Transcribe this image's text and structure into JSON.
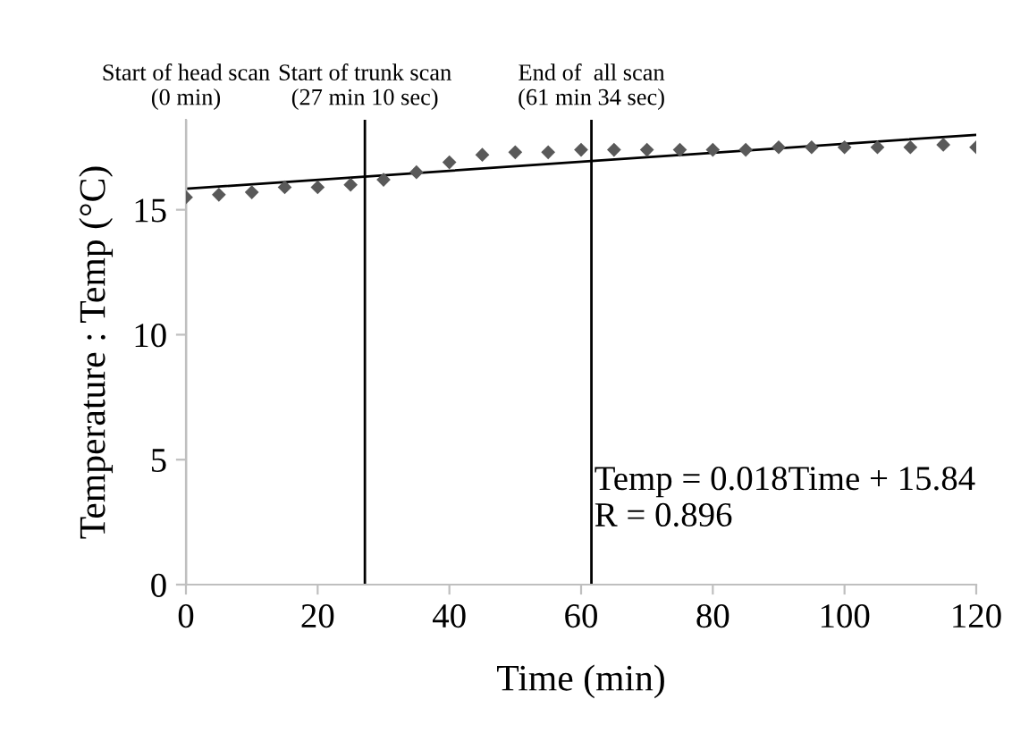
{
  "chart_data": {
    "type": "scatter",
    "xlabel": "Time (min)",
    "ylabel": "Temperature : Temp (°C)",
    "xlim": [
      0,
      120
    ],
    "xticks": [
      0,
      20,
      40,
      60,
      80,
      100,
      120
    ],
    "ylim": [
      0,
      18.6
    ],
    "yticks": [
      0,
      5,
      10,
      15
    ],
    "grid": false,
    "legend": false,
    "series": [
      {
        "marker": "diamond",
        "color": "#595959",
        "x": [
          0,
          5,
          10,
          15,
          20,
          25,
          30,
          35,
          40,
          45,
          50,
          55,
          60,
          65,
          70,
          75,
          80,
          85,
          90,
          95,
          100,
          105,
          110,
          115,
          120
        ],
        "values": [
          15.5,
          15.6,
          15.7,
          15.9,
          15.9,
          16.0,
          16.2,
          16.5,
          16.9,
          17.2,
          17.3,
          17.3,
          17.4,
          17.4,
          17.4,
          17.4,
          17.4,
          17.4,
          17.5,
          17.5,
          17.5,
          17.5,
          17.5,
          17.6,
          17.5
        ]
      },
      {
        "type": "line",
        "marker": "none",
        "color": "#000000",
        "x": [
          0,
          120
        ],
        "values": [
          15.84,
          18.0
        ]
      }
    ],
    "ref_lines": [
      {
        "axis": "x",
        "value": 0,
        "label": "Start of head scan\n(0 min)",
        "color": "#bfbfbf"
      },
      {
        "axis": "x",
        "value": 27.17,
        "label": "Start of trunk scan\n(27 min 10 sec)",
        "color": "#000000"
      },
      {
        "axis": "x",
        "value": 61.57,
        "label": "End of  all scan\n(61 min 34 sec)",
        "color": "#000000"
      }
    ],
    "annotations": [
      {
        "text": "Temp = 0.018Time + 15.84\nR = 0.896",
        "x": 62,
        "y": 3.4
      }
    ]
  }
}
